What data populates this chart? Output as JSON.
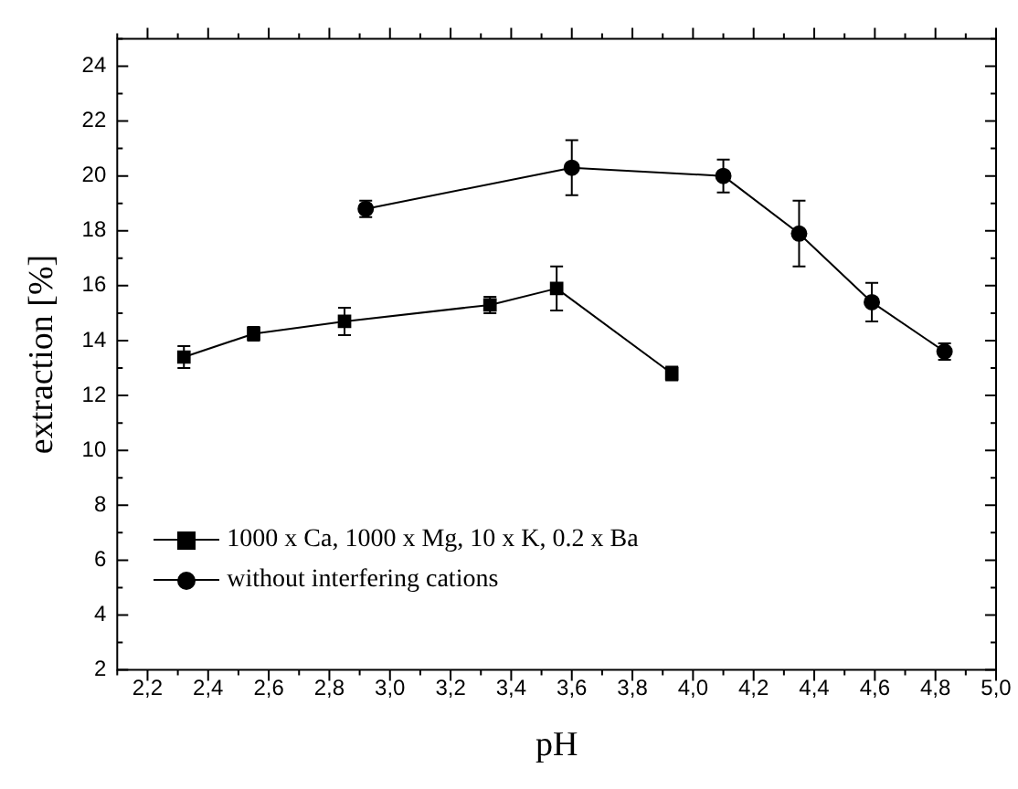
{
  "chart_data": {
    "type": "line",
    "xlabel": "pH",
    "ylabel": "extraction [%]",
    "xlim": [
      2.1,
      5.0
    ],
    "xticks": [
      {
        "value": 2.2,
        "label": "2,2"
      },
      {
        "value": 2.4,
        "label": "2,4"
      },
      {
        "value": 2.6,
        "label": "2,6"
      },
      {
        "value": 2.8,
        "label": "2,8"
      },
      {
        "value": 3.0,
        "label": "3,0"
      },
      {
        "value": 3.2,
        "label": "3,2"
      },
      {
        "value": 3.4,
        "label": "3,4"
      },
      {
        "value": 3.6,
        "label": "3,6"
      },
      {
        "value": 3.8,
        "label": "3,8"
      },
      {
        "value": 4.0,
        "label": "4,0"
      },
      {
        "value": 4.2,
        "label": "4,2"
      },
      {
        "value": 4.4,
        "label": "4,4"
      },
      {
        "value": 4.6,
        "label": "4,6"
      },
      {
        "value": 4.8,
        "label": "4,8"
      },
      {
        "value": 5.0,
        "label": "5,0"
      }
    ],
    "ylim": [
      2,
      25
    ],
    "yticks": [
      2,
      4,
      6,
      8,
      10,
      12,
      14,
      16,
      18,
      20,
      22,
      24
    ],
    "grid": false,
    "legend": "bottom left",
    "line_style": "solid",
    "series": [
      {
        "name": "1000 x Ca, 1000 x Mg, 10 x K, 0.2 x Ba",
        "color": "#000000",
        "marker": "square",
        "x": [
          2.32,
          2.55,
          2.85,
          3.33,
          3.55,
          3.93
        ],
        "values": [
          13.4,
          14.25,
          14.7,
          15.3,
          15.9,
          12.8
        ],
        "errors": [
          0.4,
          0.25,
          0.5,
          0.3,
          0.8,
          0.25
        ]
      },
      {
        "name": "without interfering cations",
        "color": "#000000",
        "marker": "circle",
        "x": [
          2.92,
          3.6,
          4.1,
          4.35,
          4.59,
          4.83
        ],
        "values": [
          18.8,
          20.3,
          20.0,
          17.9,
          15.4,
          13.6
        ],
        "errors": [
          0.3,
          1.0,
          0.6,
          1.2,
          0.7,
          0.3
        ]
      }
    ]
  }
}
